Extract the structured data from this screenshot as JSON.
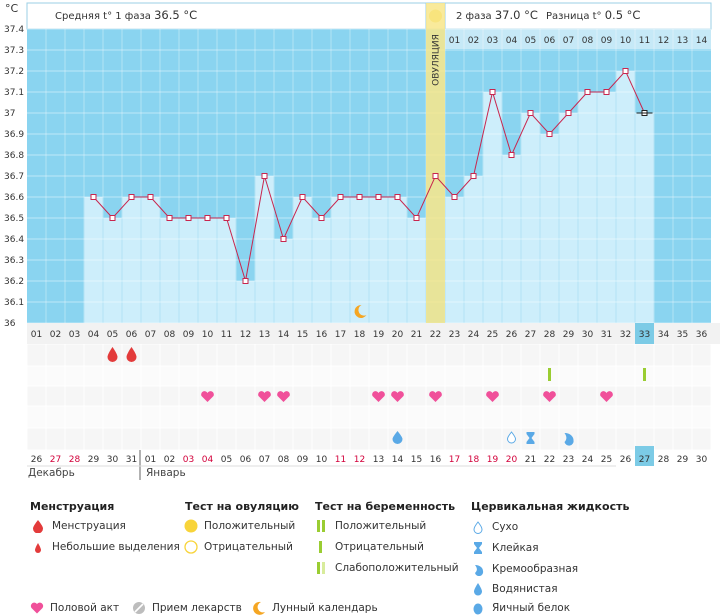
{
  "header": {
    "unit": "°C",
    "phase1_label": "Средняя t° 1 фаза",
    "phase1_value": "36.5 °C",
    "phase2_label": "2 фаза",
    "phase2_value": "37.0 °C",
    "diff_label": "Разница t°",
    "diff_value": "0.5 °C",
    "ovulation_label": "ОВУЛЯЦИЯ"
  },
  "chart_data": {
    "type": "line",
    "title": "",
    "ylabel": "°C",
    "ylim": [
      36,
      37.4
    ],
    "yticks": [
      "37.4",
      "37.3",
      "37.2",
      "37.1",
      "37",
      "36.9",
      "36.8",
      "36.7",
      "36.6",
      "36.5",
      "36.4",
      "36.3",
      "36.2",
      "36.1",
      "36"
    ],
    "cycle_days": [
      "01",
      "02",
      "03",
      "04",
      "05",
      "06",
      "07",
      "08",
      "09",
      "10",
      "11",
      "12",
      "13",
      "14",
      "15",
      "16",
      "17",
      "18",
      "19",
      "20",
      "21",
      "22",
      "23",
      "24",
      "25",
      "26",
      "27",
      "28",
      "29",
      "30",
      "31",
      "32",
      "33",
      "34",
      "35",
      "36"
    ],
    "temperatures": [
      null,
      null,
      null,
      36.6,
      36.5,
      36.6,
      36.6,
      36.5,
      36.5,
      36.5,
      36.5,
      36.2,
      36.7,
      36.4,
      36.6,
      36.5,
      36.6,
      36.6,
      36.6,
      36.6,
      36.5,
      36.7,
      36.6,
      36.7,
      37.1,
      36.8,
      37.0,
      36.9,
      37.0,
      37.1,
      37.1,
      37.2,
      37.0,
      null,
      null,
      null
    ],
    "current_day": "33",
    "ovulation_day": "22",
    "phase2_days": [
      "01",
      "02",
      "03",
      "04",
      "05",
      "06",
      "07",
      "08",
      "09",
      "10",
      "11",
      "12",
      "13",
      "14"
    ],
    "calendar_dates": [
      "26",
      "27",
      "28",
      "29",
      "30",
      "31",
      "01",
      "02",
      "03",
      "04",
      "05",
      "06",
      "07",
      "08",
      "09",
      "10",
      "11",
      "12",
      "13",
      "14",
      "15",
      "16",
      "17",
      "18",
      "19",
      "20",
      "21",
      "22",
      "23",
      "24",
      "25",
      "26",
      "27",
      "28",
      "29",
      "30"
    ],
    "red_dates_idx": [
      1,
      2,
      8,
      9,
      16,
      17,
      22,
      23,
      24,
      25
    ],
    "today_date": "27",
    "months": [
      "Декабрь",
      "Январь"
    ],
    "menstruation_days": [
      "05",
      "06"
    ],
    "lunar_day": "18",
    "ovulation_test_positive_days": [
      "28",
      "33"
    ],
    "intercourse_days": [
      "10",
      "13",
      "14",
      "19",
      "20",
      "22",
      "25",
      "28",
      "31"
    ],
    "cervical": [
      {
        "day": "20",
        "kind": "watery"
      },
      {
        "day": "26",
        "kind": "dry"
      },
      {
        "day": "27",
        "kind": "sticky"
      },
      {
        "day": "29",
        "kind": "creamy"
      }
    ]
  },
  "legend": {
    "menstruation": {
      "title": "Менструация",
      "items": [
        "Менструация",
        "Небольшие выделения"
      ]
    },
    "ovulation_test": {
      "title": "Тест на овуляцию",
      "items": [
        "Положительный",
        "Отрицательный"
      ]
    },
    "pregnancy_test": {
      "title": "Тест на беременность",
      "items": [
        "Положительный",
        "Отрицательный",
        "Слабоположительный"
      ]
    },
    "cervical_fluid": {
      "title": "Цервикальная жидкость",
      "items": [
        "Сухо",
        "Клейкая",
        "Кремообразная",
        "Водянистая",
        "Яичный белок"
      ]
    },
    "bottom": [
      "Половой акт",
      "Прием лекарств",
      "Лунный календарь"
    ]
  },
  "colors": {
    "chart_bg": "#8ad4f0",
    "bar_fill": "#cdeefb",
    "line": "#c8264e",
    "ovulation_band": "#f8e68a",
    "heart": "#f0509a",
    "drop": "#e33b3b",
    "test_green": "#9acd32",
    "cervical_blue": "#5aa9e6",
    "today": "#7ccbe6",
    "moon": "#f5a623"
  }
}
